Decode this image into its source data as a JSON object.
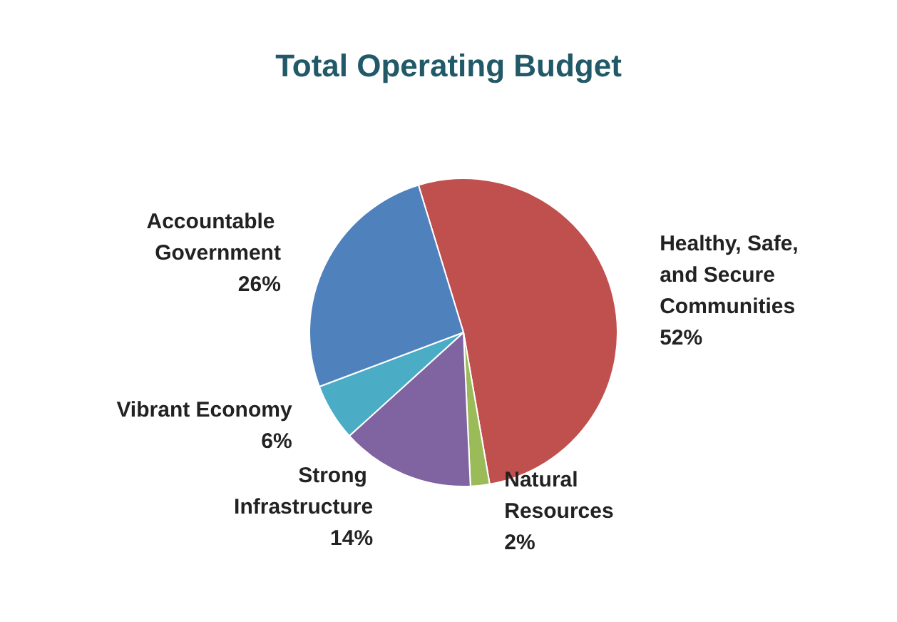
{
  "chart_data": {
    "type": "pie",
    "title": "Total Operating Budget",
    "categories": [
      "Healthy, Safe, and Secure Communities",
      "Natural Resources",
      "Strong Infrastructure",
      "Vibrant Economy",
      "Accountable Government"
    ],
    "values": [
      52,
      2,
      14,
      6,
      26
    ],
    "value_labels": [
      "52%",
      "2%",
      "14%",
      "6%",
      "26%"
    ],
    "colors": [
      "#c0504d",
      "#9bbb59",
      "#8064a2",
      "#4bacc6",
      "#4f81bd"
    ],
    "legend": false
  }
}
